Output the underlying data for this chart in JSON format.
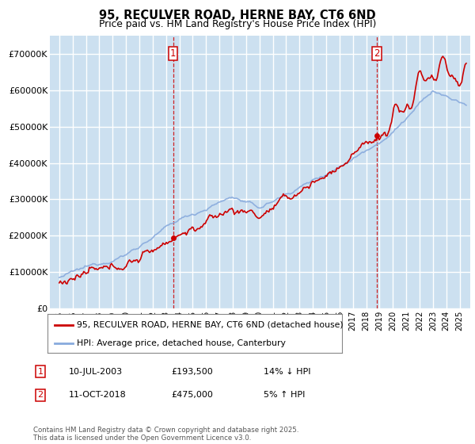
{
  "title1": "95, RECULVER ROAD, HERNE BAY, CT6 6ND",
  "title2": "Price paid vs. HM Land Registry's House Price Index (HPI)",
  "background_color": "#ffffff",
  "plot_bg_color": "#cce0f0",
  "grid_color": "#ffffff",
  "line1_color": "#cc0000",
  "line2_color": "#88aadd",
  "vline_color": "#cc0000",
  "sale1_year": 2003.53,
  "sale1_price": 193500,
  "sale2_year": 2018.78,
  "sale2_price": 475000,
  "legend1": "95, RECULVER ROAD, HERNE BAY, CT6 6ND (detached house)",
  "legend2": "HPI: Average price, detached house, Canterbury",
  "annotation1_label": "1",
  "annotation1_date": "10-JUL-2003",
  "annotation1_price": "£193,500",
  "annotation1_note": "14% ↓ HPI",
  "annotation2_label": "2",
  "annotation2_date": "11-OCT-2018",
  "annotation2_price": "£475,000",
  "annotation2_note": "5% ↑ HPI",
  "footer": "Contains HM Land Registry data © Crown copyright and database right 2025.\nThis data is licensed under the Open Government Licence v3.0.",
  "ylim_max": 750000,
  "ylim_min": 0,
  "xlim_min": 1994.3,
  "xlim_max": 2025.8
}
